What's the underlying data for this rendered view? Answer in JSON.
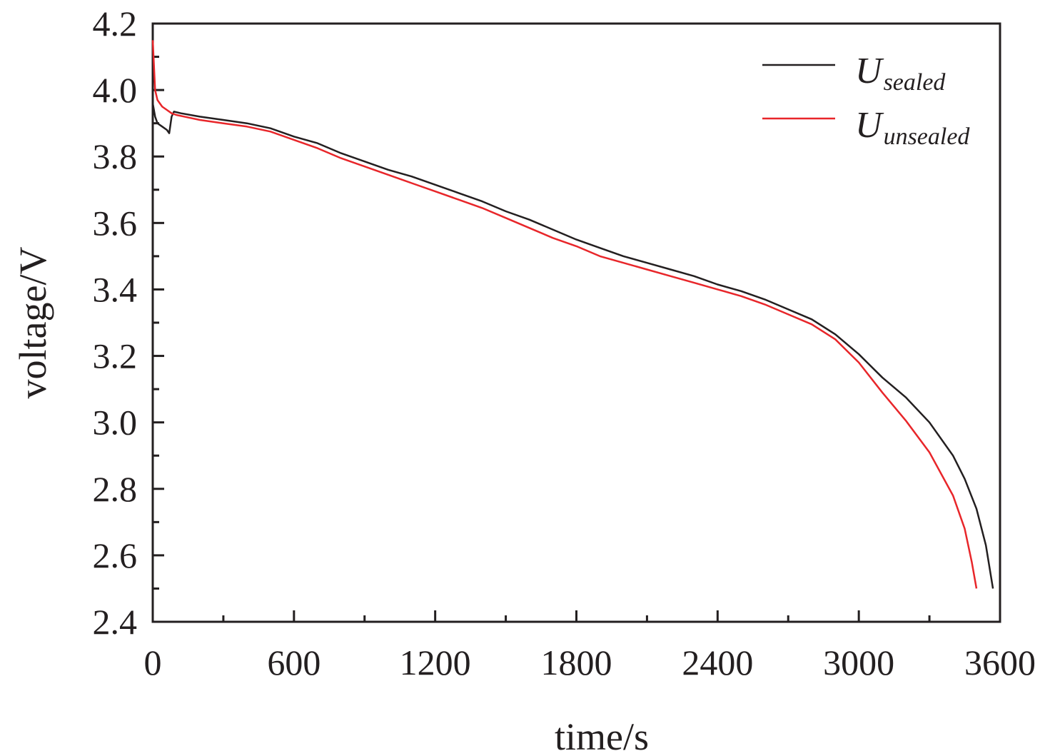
{
  "chart_data": {
    "type": "line",
    "xlabel": "time/s",
    "ylabel": "voltage/V",
    "xlim": [
      0,
      3600
    ],
    "ylim": [
      2.4,
      4.2
    ],
    "xticks": [
      "0",
      "600",
      "1200",
      "1800",
      "2400",
      "3000",
      "3600"
    ],
    "yticks": [
      "2.4",
      "2.6",
      "2.8",
      "3.0",
      "3.2",
      "3.4",
      "3.6",
      "3.8",
      "4.0",
      "4.2"
    ],
    "grid": false,
    "legend_position": "top-right",
    "series": [
      {
        "name": "U",
        "subscript": "sealed",
        "color": "#231f20",
        "x": [
          0,
          10,
          20,
          40,
          60,
          70,
          80,
          90,
          120,
          200,
          300,
          400,
          500,
          600,
          700,
          800,
          900,
          1000,
          1100,
          1200,
          1300,
          1400,
          1500,
          1600,
          1700,
          1800,
          1900,
          2000,
          2100,
          2200,
          2300,
          2400,
          2500,
          2600,
          2700,
          2800,
          2900,
          3000,
          3100,
          3200,
          3300,
          3400,
          3450,
          3500,
          3540,
          3570
        ],
        "y": [
          3.96,
          3.92,
          3.9,
          3.89,
          3.88,
          3.87,
          3.92,
          3.935,
          3.93,
          3.92,
          3.91,
          3.9,
          3.885,
          3.86,
          3.84,
          3.81,
          3.785,
          3.76,
          3.74,
          3.715,
          3.69,
          3.665,
          3.635,
          3.61,
          3.58,
          3.55,
          3.525,
          3.5,
          3.48,
          3.46,
          3.44,
          3.415,
          3.395,
          3.37,
          3.34,
          3.31,
          3.265,
          3.205,
          3.135,
          3.075,
          3.0,
          2.9,
          2.83,
          2.74,
          2.63,
          2.5
        ]
      },
      {
        "name": "U",
        "subscript": "unsealed",
        "color": "#e8262a",
        "x": [
          0,
          10,
          20,
          40,
          60,
          80,
          100,
          200,
          300,
          400,
          500,
          600,
          700,
          800,
          900,
          1000,
          1100,
          1200,
          1300,
          1400,
          1500,
          1600,
          1700,
          1800,
          1900,
          2000,
          2100,
          2200,
          2300,
          2400,
          2500,
          2600,
          2700,
          2800,
          2900,
          3000,
          3100,
          3200,
          3300,
          3400,
          3450,
          3480,
          3500
        ],
        "y": [
          4.15,
          4.0,
          3.97,
          3.95,
          3.94,
          3.93,
          3.925,
          3.91,
          3.9,
          3.89,
          3.875,
          3.85,
          3.825,
          3.795,
          3.77,
          3.745,
          3.72,
          3.695,
          3.67,
          3.645,
          3.615,
          3.585,
          3.555,
          3.53,
          3.5,
          3.48,
          3.46,
          3.44,
          3.42,
          3.4,
          3.38,
          3.355,
          3.325,
          3.295,
          3.25,
          3.18,
          3.09,
          3.005,
          2.91,
          2.78,
          2.68,
          2.58,
          2.5
        ]
      }
    ]
  }
}
